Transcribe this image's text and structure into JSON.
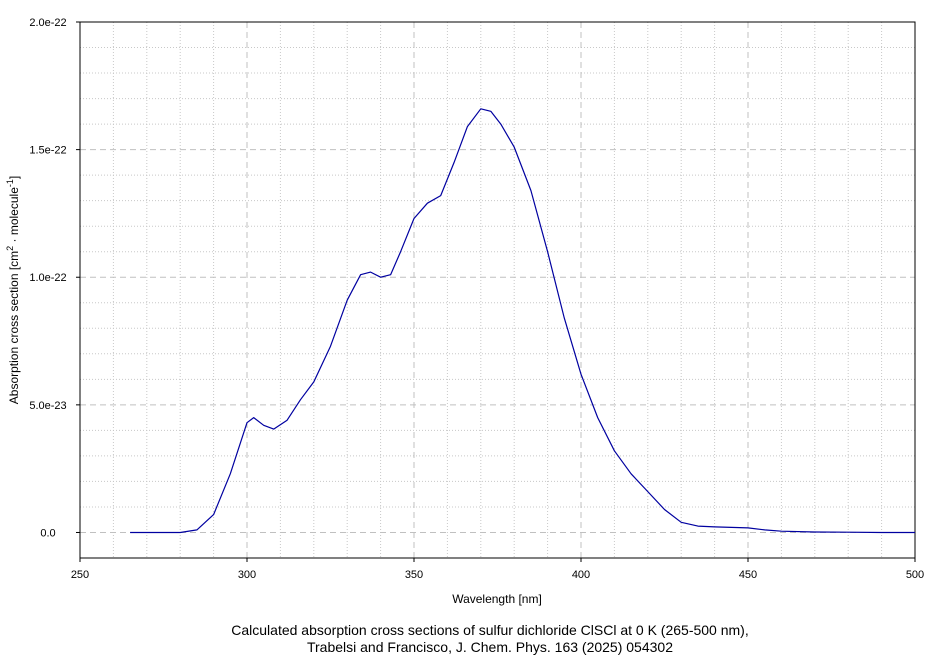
{
  "chart_data": {
    "type": "line",
    "title_lines": [
      "Calculated absorption cross sections of sulfur dichloride ClSCl at 0 K (265-500 nm),",
      "Trabelsi and Francisco, J. Chem. Phys. 163 (2025) 054302"
    ],
    "x_label": "Wavelength [nm]",
    "y_label_parts": [
      "Absorption cross section [cm",
      "2",
      " · molecule",
      "-1",
      "]"
    ],
    "xlim": [
      250,
      500
    ],
    "xticks": [
      250,
      300,
      350,
      400,
      450,
      500
    ],
    "xminor": [
      260,
      270,
      280,
      290,
      310,
      320,
      330,
      340,
      360,
      370,
      380,
      390,
      410,
      420,
      430,
      440,
      460,
      470,
      480,
      490
    ],
    "ylim": [
      -1e-23,
      2e-22
    ],
    "yticks": [
      {
        "value": 0,
        "label": "0.0"
      },
      {
        "value": 5e-23,
        "label": "5.0e-23"
      },
      {
        "value": 1e-22,
        "label": "1.0e-22"
      },
      {
        "value": 1.5e-22,
        "label": "1.5e-22"
      },
      {
        "value": 2e-22,
        "label": "2.0e-22"
      }
    ],
    "yminor": [
      1e-23,
      2e-23,
      3e-23,
      4e-23,
      6e-23,
      7e-23,
      8e-23,
      9e-23,
      1.1e-22,
      1.2e-22,
      1.3e-22,
      1.4e-22,
      1.6e-22,
      1.7e-22,
      1.8e-22,
      1.9e-22
    ],
    "grid": true,
    "series": [
      {
        "color": "#0000a0",
        "x": [
          265,
          280,
          285,
          290,
          295,
          300,
          302,
          305,
          308,
          312,
          316,
          320,
          325,
          330,
          334,
          337,
          340,
          343,
          346,
          350,
          354,
          358,
          362,
          366,
          370,
          373,
          376,
          380,
          385,
          390,
          395,
          400,
          405,
          410,
          415,
          420,
          425,
          430,
          435,
          440,
          450,
          455,
          460,
          470,
          480,
          490,
          500
        ],
        "values": [
          0,
          0,
          1e-24,
          7e-24,
          2.3e-23,
          4.3e-23,
          4.5e-23,
          4.2e-23,
          4.05e-23,
          4.4e-23,
          5.2e-23,
          5.9e-23,
          7.3e-23,
          9.1e-23,
          1.01e-22,
          1.02e-22,
          1e-22,
          1.01e-22,
          1.1e-22,
          1.23e-22,
          1.29e-22,
          1.32e-22,
          1.45e-22,
          1.59e-22,
          1.66e-22,
          1.65e-22,
          1.6e-22,
          1.51e-22,
          1.34e-22,
          1.1e-22,
          8.4e-23,
          6.2e-23,
          4.5e-23,
          3.2e-23,
          2.3e-23,
          1.6e-23,
          9e-24,
          4e-24,
          2.5e-24,
          2.2e-24,
          1.8e-24,
          1e-24,
          5e-25,
          2e-25,
          1e-25,
          0,
          0
        ]
      }
    ]
  }
}
